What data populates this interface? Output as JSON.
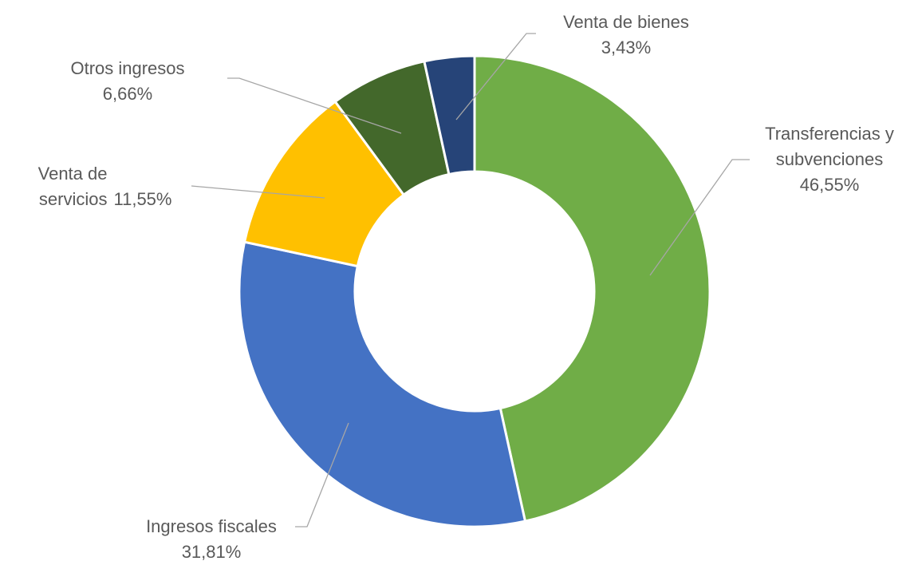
{
  "chart_data": {
    "type": "donut",
    "categories": [
      "Transferencias y subvenciones",
      "Ingresos fiscales",
      "Venta de servicios",
      "Otros ingresos",
      "Venta de bienes"
    ],
    "values": [
      46.55,
      31.81,
      11.55,
      6.66,
      3.43
    ],
    "value_labels": [
      "46,55%",
      "31,81%",
      "11,55%",
      "6,66%",
      "3,43%"
    ],
    "colors": [
      "#70ad47",
      "#4472c4",
      "#ffc000",
      "#43682b",
      "#264478"
    ]
  }
}
